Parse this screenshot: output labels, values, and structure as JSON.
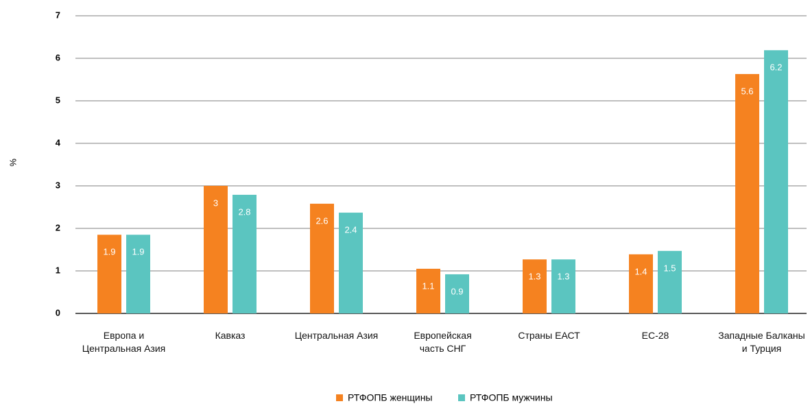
{
  "chart_data": {
    "type": "bar",
    "y_label": "%",
    "categories": [
      "Европа и\nЦентральная Азия",
      "Кавказ",
      "Центральная Азия",
      "Европейская\nчасть СНГ",
      "Страны ЕАСТ",
      "ЕС-28",
      "Западные Балканы\nи Турция"
    ],
    "series": [
      {
        "name": "РТФОПБ женщины",
        "color": "#f58220",
        "values": [
          1.85,
          3.0,
          2.58,
          1.05,
          1.27,
          1.39,
          5.63
        ],
        "value_labels": [
          "1.9",
          "3",
          "2.6",
          "1.1",
          "1.3",
          "1.4",
          "5.6"
        ]
      },
      {
        "name": "РТФОПБ мужчины",
        "color": "#5bc5c0",
        "values": [
          1.85,
          2.79,
          2.37,
          0.92,
          1.27,
          1.47,
          6.19
        ],
        "value_labels": [
          "1.9",
          "2.8",
          "2.4",
          "0.9",
          "1.3",
          "1.5",
          "6.2"
        ]
      }
    ],
    "ylim": [
      0,
      7
    ],
    "yticks": [
      0,
      1,
      2,
      3,
      4,
      5,
      6,
      7
    ],
    "grid": true,
    "legend": "bottom"
  }
}
